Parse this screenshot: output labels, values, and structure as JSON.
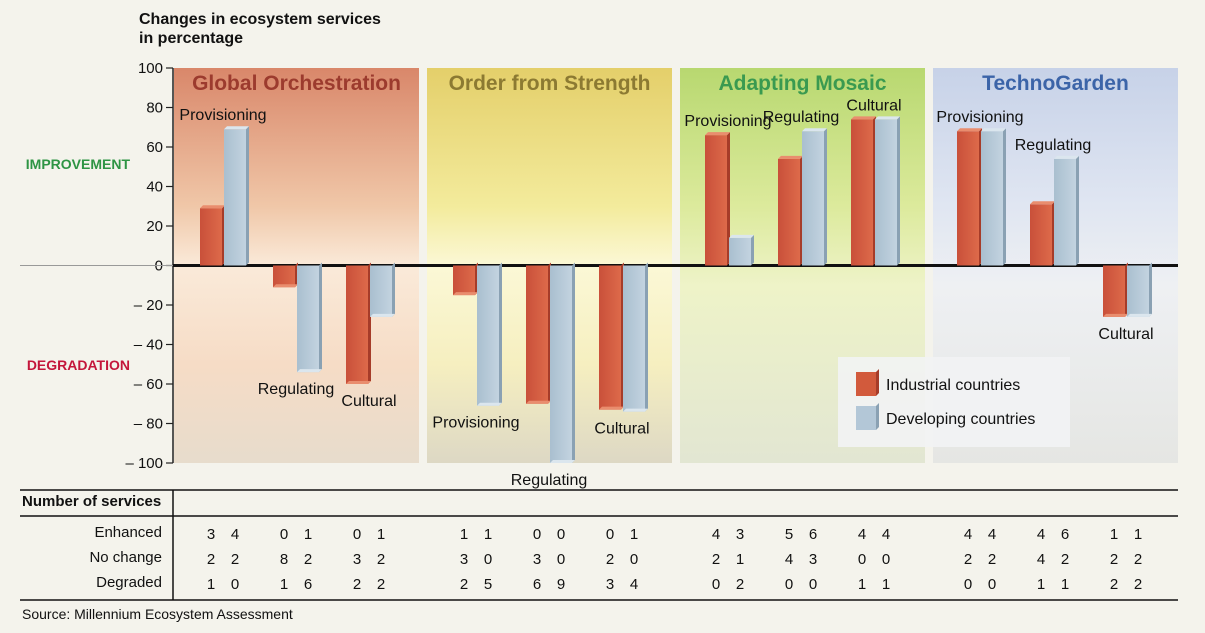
{
  "chart_data": {
    "type": "bar",
    "title": "Changes in ecosystem services in percentage",
    "title_lines": [
      "Changes in ecosystem services",
      "in percentage"
    ],
    "ylim": [
      -100,
      100
    ],
    "yticks": [
      100,
      80,
      60,
      40,
      20,
      0,
      -20,
      -40,
      -60,
      -80,
      -100
    ],
    "ytick_labels": [
      "100",
      "80",
      "60",
      "40",
      "20",
      "0",
      "– 20",
      "– 40",
      "– 60",
      "– 80",
      "– 100"
    ],
    "zone_labels": {
      "positive": "IMPROVEMENT",
      "negative": "DEGRADATION"
    },
    "legend": {
      "placement": "lower-right",
      "entries": [
        {
          "name": "Industrial countries",
          "color": "#d25a3c"
        },
        {
          "name": "Developing countries",
          "color": "#b3c7d7"
        }
      ]
    },
    "scenarios": [
      {
        "name": "Global Orchestration",
        "title_color": "#9c3b2e",
        "categories": [
          {
            "name": "Provisioning",
            "industrial": 29,
            "developing": 69,
            "label_pos": "above"
          },
          {
            "name": "Regulating",
            "industrial": -11,
            "developing": -54,
            "label_pos": "below"
          },
          {
            "name": "Cultural",
            "industrial": -60,
            "developing": -26,
            "label_pos": "below"
          }
        ]
      },
      {
        "name": "Order from Strength",
        "title_color": "#8c7a32",
        "categories": [
          {
            "name": "Provisioning",
            "industrial": -15,
            "developing": -71,
            "label_pos": "below"
          },
          {
            "name": "Regulating",
            "industrial": -70,
            "developing": -100,
            "label_pos": "below"
          },
          {
            "name": "Cultural",
            "industrial": -73,
            "developing": -74,
            "label_pos": "below"
          }
        ]
      },
      {
        "name": "Adapting Mosaic",
        "title_color": "#3a9a50",
        "categories": [
          {
            "name": "Provisioning",
            "industrial": 66,
            "developing": 14,
            "label_pos": "above"
          },
          {
            "name": "Regulating",
            "industrial": 54,
            "developing": 68,
            "label_pos": "above"
          },
          {
            "name": "Cultural",
            "industrial": 74,
            "developing": 74,
            "label_pos": "above"
          }
        ]
      },
      {
        "name": "TechnoGarden",
        "title_color": "#3c64a8",
        "categories": [
          {
            "name": "Provisioning",
            "industrial": 68,
            "developing": 68,
            "label_pos": "above"
          },
          {
            "name": "Regulating",
            "industrial": 31,
            "developing": 54,
            "label_pos": "above"
          },
          {
            "name": "Cultural",
            "industrial": -26,
            "developing": -26,
            "label_pos": "below"
          }
        ]
      }
    ],
    "table": {
      "header": "Number of services",
      "row_labels": [
        "Enhanced",
        "No change",
        "Degraded"
      ],
      "values": [
        [
          [
            "3",
            "4"
          ],
          [
            "0",
            "1"
          ],
          [
            "0",
            "1"
          ],
          [
            "1",
            "1"
          ],
          [
            "0",
            "0"
          ],
          [
            "0",
            "1"
          ],
          [
            "4",
            "3"
          ],
          [
            "5",
            "6"
          ],
          [
            "4",
            "4"
          ],
          [
            "4",
            "4"
          ],
          [
            "4",
            "6"
          ],
          [
            "1",
            "1"
          ]
        ],
        [
          [
            "2",
            "2"
          ],
          [
            "8",
            "2"
          ],
          [
            "3",
            "2"
          ],
          [
            "3",
            "0"
          ],
          [
            "3",
            "0"
          ],
          [
            "2",
            "0"
          ],
          [
            "2",
            "1"
          ],
          [
            "4",
            "3"
          ],
          [
            "0",
            "0"
          ],
          [
            "2",
            "2"
          ],
          [
            "4",
            "2"
          ],
          [
            "2",
            "2"
          ]
        ],
        [
          [
            "1",
            "0"
          ],
          [
            "1",
            "6"
          ],
          [
            "2",
            "2"
          ],
          [
            "2",
            "5"
          ],
          [
            "6",
            "9"
          ],
          [
            "3",
            "4"
          ],
          [
            "0",
            "2"
          ],
          [
            "0",
            "0"
          ],
          [
            "1",
            "1"
          ],
          [
            "0",
            "0"
          ],
          [
            "1",
            "1"
          ],
          [
            "2",
            "2"
          ]
        ]
      ]
    },
    "source": "Source: Millennium Ecosystem Assessment"
  }
}
